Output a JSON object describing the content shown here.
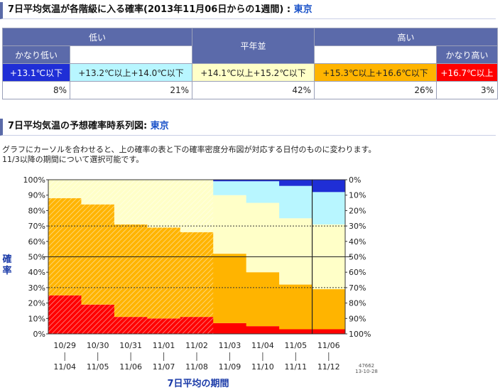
{
  "header1": {
    "title": "7日平均気温が各階級に入る確率(2013年11月06日からの1週間) :",
    "city": "東京"
  },
  "table": {
    "group_headers": [
      "低い",
      "平年並",
      "高い"
    ],
    "sub_headers": {
      "very_low": "かなり低い",
      "very_high": "かなり高い"
    },
    "classes": [
      {
        "label": "+13.1℃以下",
        "bg": "#1f2ed6",
        "fg": "#ffffff",
        "percent": "8%"
      },
      {
        "label": "+13.2℃以上+14.0℃以下",
        "bg": "#b8f6ff",
        "fg": "#222222",
        "percent": "21%"
      },
      {
        "label": "+14.1℃以上+15.2℃以下",
        "bg": "#ffffc8",
        "fg": "#222222",
        "percent": "42%"
      },
      {
        "label": "+15.3℃以上+16.6℃以下",
        "bg": "#ffb400",
        "fg": "#222222",
        "percent": "26%"
      },
      {
        "label": "+16.7℃以上",
        "bg": "#ff0000",
        "fg": "#ffffff",
        "percent": "3%"
      }
    ]
  },
  "header2": {
    "title": "7日平均気温の予想確率時系列図:",
    "city": "東京"
  },
  "description": [
    "グラフにカーソルを合わせると、上の確率の表と下の確率密度分布図が対応する日付のものに変わります。",
    "11/3以降の期間について選択可能です。"
  ],
  "chart_data": {
    "type": "area",
    "categories_start": [
      "10/29",
      "10/30",
      "10/31",
      "11/01",
      "11/02",
      "11/03",
      "11/04",
      "11/05",
      "11/06"
    ],
    "categories_end": [
      "11/04",
      "11/05",
      "11/06",
      "11/07",
      "11/08",
      "11/09",
      "11/10",
      "11/11",
      "11/12"
    ],
    "series": [
      {
        "name": "+16.7℃以上",
        "color": "#ff0000",
        "values": [
          25,
          19,
          11,
          10,
          11,
          7,
          5,
          3,
          3
        ]
      },
      {
        "name": "+15.3℃以上+16.6℃以下",
        "color": "#ffb400",
        "values": [
          63,
          65,
          60,
          59,
          55,
          45,
          35,
          29,
          26
        ]
      },
      {
        "name": "+14.1℃以上+15.2℃以下",
        "color": "#ffffc8",
        "values": [
          12,
          16,
          29,
          31,
          34,
          38,
          45,
          43,
          42
        ]
      },
      {
        "name": "+13.2℃以上+14.0℃以下",
        "color": "#b8f6ff",
        "values": [
          0,
          0,
          0,
          0,
          0,
          9,
          14,
          21,
          21
        ]
      },
      {
        "name": "+13.1℃以下",
        "color": "#1f2ed6",
        "values": [
          0,
          0,
          0,
          0,
          0,
          1,
          1,
          4,
          8
        ]
      }
    ],
    "observed_periods": 5,
    "y_left_ticks": [
      "0%",
      "10%",
      "20%",
      "30%",
      "40%",
      "50%",
      "60%",
      "70%",
      "80%",
      "90%",
      "100%"
    ],
    "y_right_ticks": [
      "100%",
      "90%",
      "80%",
      "70%",
      "60%",
      "50%",
      "40%",
      "30%",
      "20%",
      "10%",
      "0%"
    ],
    "ylim": [
      0,
      100
    ],
    "reference_lines": [
      30,
      50,
      70
    ],
    "selected_index": 8,
    "ylabel": "確率",
    "xlabel": "7日平均の期間",
    "stamp": [
      "47662",
      "13-10-28"
    ]
  }
}
